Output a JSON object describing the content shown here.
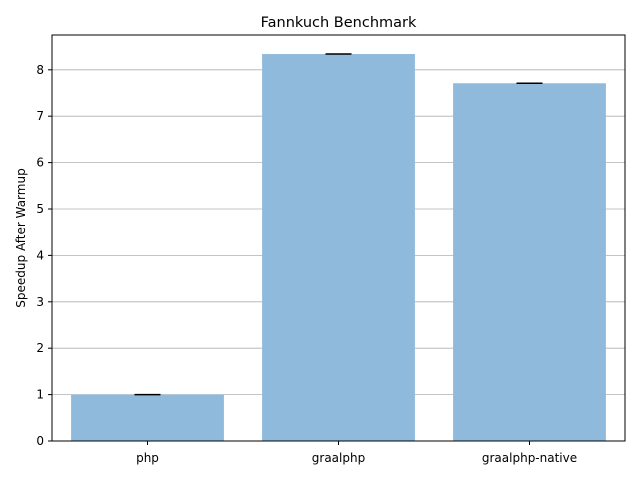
{
  "chart_data": {
    "type": "bar",
    "title": "Fannkuch Benchmark",
    "xlabel": "",
    "ylabel": "Speedup After Warmup",
    "categories": [
      "php",
      "graalphp",
      "graalphp-native"
    ],
    "values": [
      1.0,
      8.34,
      7.71
    ],
    "error": [
      0.0,
      0.0,
      0.0
    ],
    "ylim": [
      0,
      8.75
    ],
    "yticks": [
      0,
      1,
      2,
      3,
      4,
      5,
      6,
      7,
      8
    ],
    "grid": "horizontal",
    "colors": {
      "bar": "#8fbadb",
      "grid": "#b0b0b0",
      "errorbar": "#000000",
      "axis": "#000000"
    }
  }
}
